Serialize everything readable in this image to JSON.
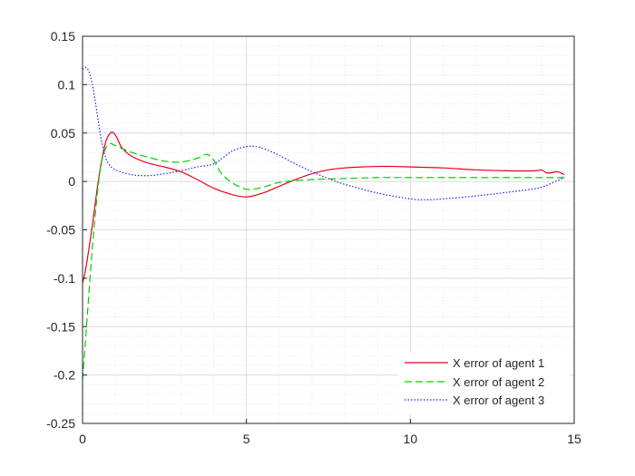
{
  "chart_data": {
    "type": "line",
    "title": "",
    "xlabel": "",
    "ylabel": "",
    "xlim": [
      0,
      15
    ],
    "ylim": [
      -0.25,
      0.15
    ],
    "grid": true,
    "minor_grid": true,
    "legend_position": "bottom-right",
    "x_ticks": [
      "0",
      "5",
      "10",
      "15"
    ],
    "y_ticks": [
      "0.15",
      "0.1",
      "0.05",
      "0",
      "-0.05",
      "-0.1",
      "-0.15",
      "-0.2",
      "-0.25"
    ],
    "series": [
      {
        "name": "X error of agent 1",
        "color": "#e8001c",
        "dash": "solid",
        "x": [
          0,
          0.1,
          0.3,
          0.5,
          0.7,
          0.85,
          0.95,
          1.05,
          1.2,
          1.5,
          2,
          2.5,
          3,
          3.5,
          4,
          4.5,
          5,
          5.5,
          6,
          6.5,
          7,
          7.5,
          8,
          8.5,
          9,
          9.5,
          10,
          11,
          12,
          13,
          13.8,
          14,
          14.15,
          14.3,
          14.5,
          14.7
        ],
        "y": [
          -0.105,
          -0.09,
          -0.045,
          0.005,
          0.04,
          0.05,
          0.05,
          0.045,
          0.035,
          0.026,
          0.019,
          0.015,
          0.01,
          0.002,
          -0.007,
          -0.013,
          -0.016,
          -0.012,
          -0.005,
          0.002,
          0.008,
          0.012,
          0.014,
          0.015,
          0.0155,
          0.0155,
          0.015,
          0.014,
          0.012,
          0.011,
          0.011,
          0.012,
          0.009,
          0.009,
          0.01,
          0.007
        ]
      },
      {
        "name": "X error of agent 2",
        "color": "#00d000",
        "dash": "dashed",
        "x": [
          0,
          0.1,
          0.25,
          0.4,
          0.55,
          0.7,
          0.85,
          1,
          1.5,
          2,
          2.5,
          3,
          3.5,
          3.8,
          4,
          4.2,
          4.5,
          5,
          5.5,
          6,
          7,
          8,
          9,
          10,
          11,
          12,
          13,
          14,
          14.7
        ],
        "y": [
          -0.205,
          -0.16,
          -0.09,
          -0.03,
          0.015,
          0.034,
          0.039,
          0.037,
          0.03,
          0.025,
          0.021,
          0.02,
          0.024,
          0.028,
          0.022,
          0.01,
          0.0,
          -0.008,
          -0.006,
          -0.001,
          0.002,
          0.003,
          0.004,
          0.004,
          0.004,
          0.004,
          0.004,
          0.004,
          0.004
        ]
      },
      {
        "name": "X error of agent 3",
        "color": "#2222ee",
        "dash": "dotted",
        "x": [
          0,
          0.1,
          0.2,
          0.3,
          0.4,
          0.5,
          0.6,
          0.7,
          0.8,
          1,
          1.5,
          2,
          2.5,
          3,
          3.5,
          4,
          4.3,
          4.6,
          5,
          5.3,
          5.6,
          6,
          6.5,
          7,
          7.5,
          8,
          9,
          10,
          10.5,
          11,
          12,
          13,
          13.7,
          14,
          14.3,
          14.7
        ],
        "y": [
          0.116,
          0.118,
          0.113,
          0.1,
          0.08,
          0.058,
          0.038,
          0.025,
          0.018,
          0.012,
          0.007,
          0.006,
          0.008,
          0.011,
          0.015,
          0.018,
          0.025,
          0.032,
          0.036,
          0.036,
          0.033,
          0.027,
          0.018,
          0.01,
          0.003,
          -0.003,
          -0.012,
          -0.018,
          -0.019,
          -0.018,
          -0.015,
          -0.011,
          -0.008,
          -0.006,
          -0.002,
          0.004
        ]
      }
    ]
  }
}
